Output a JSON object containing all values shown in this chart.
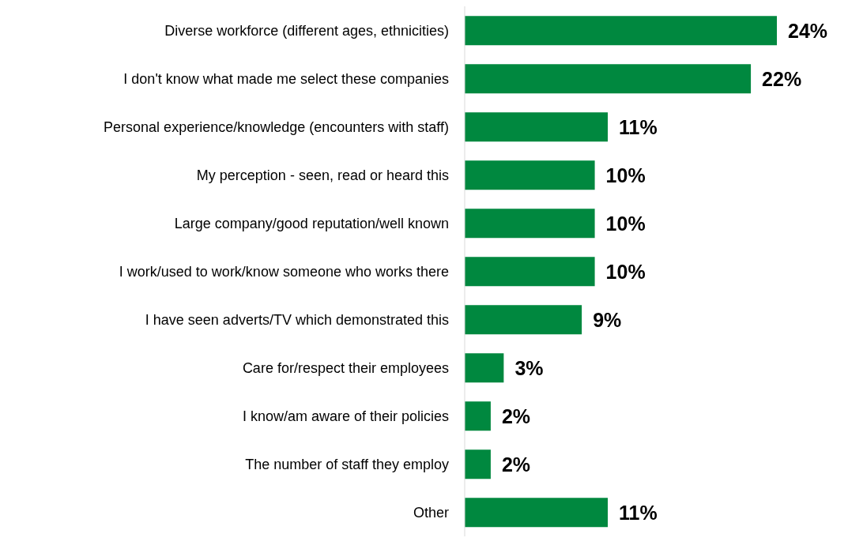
{
  "chart_data": {
    "type": "bar",
    "orientation": "horizontal",
    "categories": [
      "Diverse workforce (different ages, ethnicities)",
      "I don't know what made me select these companies",
      "Personal experience/knowledge (encounters with staff)",
      "My perception - seen, read or heard this",
      "Large company/good reputation/well known",
      "I work/used to work/know someone who works there",
      "I have seen adverts/TV which demonstrated this",
      "Care for/respect their employees",
      "I know/am aware of their policies",
      "The number of staff they employ",
      "Other"
    ],
    "values": [
      24,
      22,
      11,
      10,
      10,
      10,
      9,
      3,
      2,
      2,
      11
    ],
    "value_labels": [
      "24%",
      "22%",
      "11%",
      "10%",
      "10%",
      "10%",
      "9%",
      "3%",
      "2%",
      "2%",
      "11%"
    ],
    "color": "#00883f",
    "grid": false,
    "legend": false
  }
}
